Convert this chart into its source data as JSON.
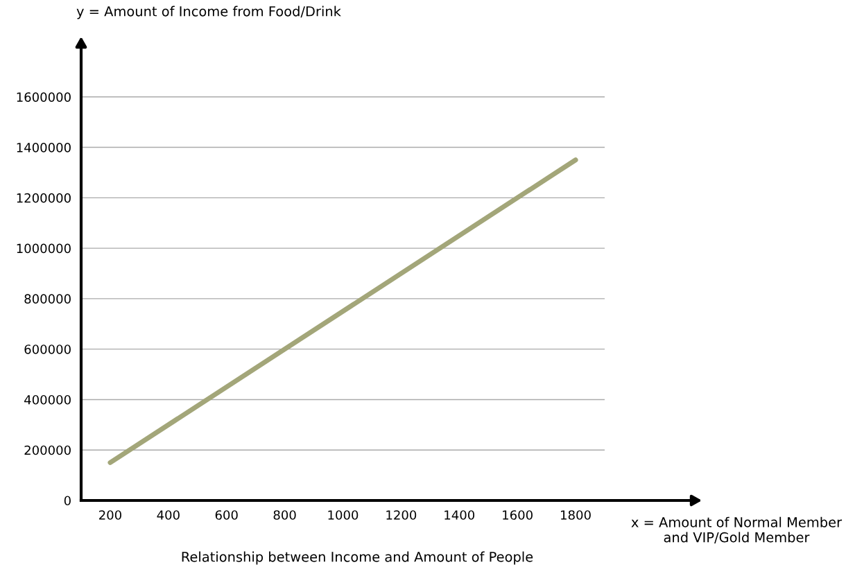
{
  "chart_data": {
    "type": "line",
    "title": "Relationship between Income and Amount of People",
    "xlabel": "x = Amount of Normal Member\nand VIP/Gold Member",
    "ylabel": "y = Amount of Income from Food/Drink",
    "x": [
      200,
      1800
    ],
    "series": [
      {
        "color": "#a3a679",
        "values": [
          150000,
          1350000
        ]
      }
    ],
    "xlim": [
      100,
      1900
    ],
    "xticks": [
      200,
      400,
      600,
      800,
      1000,
      1200,
      1400,
      1600,
      1800
    ],
    "ylim": [
      0,
      1800000
    ],
    "yticks": [
      0,
      200000,
      400000,
      600000,
      800000,
      1000000,
      1200000,
      1400000,
      1600000
    ],
    "grid": "y",
    "legend": false,
    "marker": "none",
    "line_style": "solid"
  }
}
